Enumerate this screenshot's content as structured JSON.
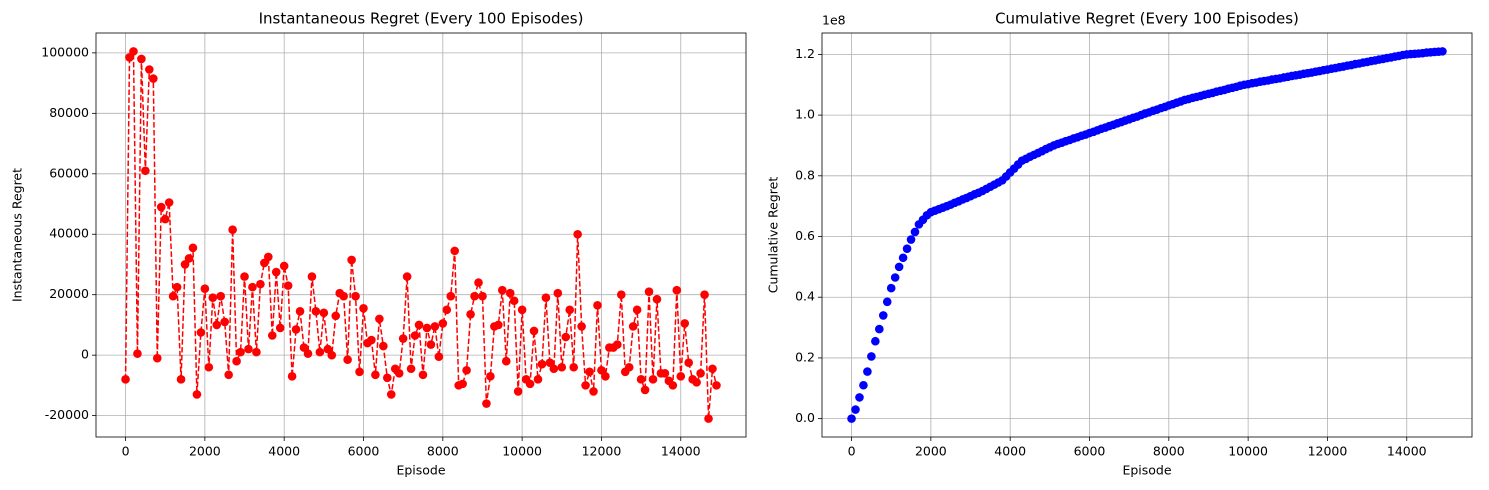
{
  "chart_data": [
    {
      "type": "line",
      "title": "Instantaneous Regret (Every 100 Episodes)",
      "xlabel": "Episode",
      "ylabel": "Instantaneous Regret",
      "x": [
        0,
        100,
        200,
        300,
        400,
        500,
        600,
        700,
        800,
        900,
        1000,
        1100,
        1200,
        1300,
        1400,
        1500,
        1600,
        1700,
        1800,
        1900,
        2000,
        2100,
        2200,
        2300,
        2400,
        2500,
        2600,
        2700,
        2800,
        2900,
        3000,
        3100,
        3200,
        3300,
        3400,
        3500,
        3600,
        3700,
        3800,
        3900,
        4000,
        4100,
        4200,
        4300,
        4400,
        4500,
        4600,
        4700,
        4800,
        4900,
        5000,
        5100,
        5200,
        5300,
        5400,
        5500,
        5600,
        5700,
        5800,
        5900,
        6000,
        6100,
        6200,
        6300,
        6400,
        6500,
        6600,
        6700,
        6800,
        6900,
        7000,
        7100,
        7200,
        7300,
        7400,
        7500,
        7600,
        7700,
        7800,
        7900,
        8000,
        8100,
        8200,
        8300,
        8400,
        8500,
        8600,
        8700,
        8800,
        8900,
        9000,
        9100,
        9200,
        9300,
        9400,
        9500,
        9600,
        9700,
        9800,
        9900,
        10000,
        10100,
        10200,
        10300,
        10400,
        10500,
        10600,
        10700,
        10800,
        10900,
        11000,
        11100,
        11200,
        11300,
        11400,
        11500,
        11600,
        11700,
        11800,
        11900,
        12000,
        12100,
        12200,
        12300,
        12400,
        12500,
        12600,
        12700,
        12800,
        12900,
        13000,
        13100,
        13200,
        13300,
        13400,
        13500,
        13600,
        13700,
        13800,
        13900,
        14000,
        14100,
        14200,
        14300,
        14400,
        14500,
        14600,
        14700,
        14800,
        14900
      ],
      "series": [
        {
          "color": "#ff0000",
          "line_style": "dashed",
          "marker": "circle",
          "values": [
            -8000,
            98500,
            100500,
            500,
            98000,
            61000,
            94500,
            91500,
            -1000,
            49000,
            45000,
            50500,
            19500,
            22500,
            -8000,
            30000,
            32000,
            35500,
            -13000,
            7500,
            22000,
            -4000,
            19000,
            10000,
            19500,
            11000,
            -6500,
            41500,
            -2000,
            1000,
            26000,
            2000,
            22500,
            1000,
            23500,
            30500,
            32500,
            6500,
            27500,
            9000,
            29500,
            23000,
            -7000,
            8500,
            14500,
            2500,
            500,
            26000,
            14500,
            1000,
            14000,
            2000,
            0,
            13000,
            20500,
            19500,
            -1500,
            31500,
            19500,
            -5500,
            15500,
            4000,
            5000,
            -6500,
            12000,
            3000,
            -7500,
            -13000,
            -4500,
            -6000,
            5500,
            26000,
            -4500,
            6500,
            10000,
            -6500,
            9000,
            3500,
            9500,
            -500,
            10500,
            15000,
            19500,
            34500,
            -10000,
            -9500,
            -5000,
            13500,
            19500,
            24000,
            19500,
            -16000,
            -7000,
            9500,
            10000,
            21500,
            -2000,
            20500,
            18000,
            -12000,
            15000,
            -8000,
            -9500,
            8000,
            -8000,
            -3000,
            19000,
            -2500,
            -4500,
            20500,
            -4000,
            6000,
            15000,
            -4000,
            40000,
            9500,
            -10000,
            -5500,
            -12000,
            16500,
            -5000,
            -7000,
            2500,
            2500,
            3500,
            20000,
            -5500,
            -4000,
            9500,
            15000,
            -8000,
            -11500,
            21000,
            -8000,
            18500,
            -6000,
            -6000,
            -8500,
            -10000,
            21500,
            -7000,
            10500,
            -2500,
            -8000,
            -9000,
            -6000,
            20000,
            -21000,
            -4500,
            -10000
          ]
        }
      ],
      "xlim": [
        -745,
        15645
      ],
      "xticks": [
        0,
        2000,
        4000,
        6000,
        8000,
        10000,
        12000,
        14000
      ],
      "ylim": [
        -27075,
        106575
      ],
      "yticks": [
        -20000,
        0,
        20000,
        40000,
        60000,
        80000,
        100000
      ],
      "grid": true
    },
    {
      "type": "line",
      "title": "Cumulative Regret (Every 100 Episodes)",
      "xlabel": "Episode",
      "ylabel": "Cumulative Regret",
      "y_offset_label": "1e8",
      "x": [
        0,
        100,
        200,
        300,
        400,
        500,
        600,
        700,
        800,
        900,
        1000,
        1100,
        1200,
        1300,
        1400,
        1500,
        1600,
        1700,
        1800,
        1900,
        2000,
        2100,
        2200,
        2300,
        2400,
        2500,
        2600,
        2700,
        2800,
        2900,
        3000,
        3100,
        3200,
        3300,
        3400,
        3500,
        3600,
        3700,
        3800,
        3900,
        4000,
        4100,
        4200,
        4300,
        4400,
        4500,
        4600,
        4700,
        4800,
        4900,
        5000,
        5100,
        5200,
        5300,
        5400,
        5500,
        5600,
        5700,
        5800,
        5900,
        6000,
        6100,
        6200,
        6300,
        6400,
        6500,
        6600,
        6700,
        6800,
        6900,
        7000,
        7100,
        7200,
        7300,
        7400,
        7500,
        7600,
        7700,
        7800,
        7900,
        8000,
        8100,
        8200,
        8300,
        8400,
        8500,
        8600,
        8700,
        8800,
        8900,
        9000,
        9100,
        9200,
        9300,
        9400,
        9500,
        9600,
        9700,
        9800,
        9900,
        10000,
        10100,
        10200,
        10300,
        10400,
        10500,
        10600,
        10700,
        10800,
        10900,
        11000,
        11100,
        11200,
        11300,
        11400,
        11500,
        11600,
        11700,
        11800,
        11900,
        12000,
        12100,
        12200,
        12300,
        12400,
        12500,
        12600,
        12700,
        12800,
        12900,
        13000,
        13100,
        13200,
        13300,
        13400,
        13500,
        13600,
        13700,
        13800,
        13900,
        14000,
        14100,
        14200,
        14300,
        14400,
        14500,
        14600,
        14700,
        14800,
        14900
      ],
      "series": [
        {
          "color": "#0000ff",
          "line_style": "none",
          "marker": "circle",
          "values": [
            0,
            0.03,
            0.07,
            0.11,
            0.155,
            0.205,
            0.255,
            0.295,
            0.34,
            0.385,
            0.43,
            0.465,
            0.5,
            0.53,
            0.56,
            0.59,
            0.615,
            0.64,
            0.655,
            0.67,
            0.68,
            0.685,
            0.69,
            0.695,
            0.7,
            0.705,
            0.711,
            0.716,
            0.722,
            0.727,
            0.733,
            0.739,
            0.744,
            0.75,
            0.757,
            0.764,
            0.771,
            0.778,
            0.785,
            0.798,
            0.811,
            0.824,
            0.837,
            0.85,
            0.856,
            0.863,
            0.869,
            0.875,
            0.881,
            0.888,
            0.894,
            0.9,
            0.905,
            0.909,
            0.914,
            0.918,
            0.923,
            0.927,
            0.932,
            0.936,
            0.941,
            0.945,
            0.95,
            0.955,
            0.959,
            0.964,
            0.968,
            0.973,
            0.977,
            0.982,
            0.986,
            0.991,
            0.995,
            1.0,
            1.005,
            1.009,
            1.014,
            1.018,
            1.023,
            1.027,
            1.032,
            1.036,
            1.041,
            1.045,
            1.05,
            1.053,
            1.057,
            1.06,
            1.063,
            1.067,
            1.07,
            1.073,
            1.077,
            1.08,
            1.083,
            1.087,
            1.09,
            1.093,
            1.097,
            1.1,
            1.102,
            1.105,
            1.107,
            1.11,
            1.112,
            1.114,
            1.117,
            1.119,
            1.121,
            1.124,
            1.126,
            1.129,
            1.131,
            1.133,
            1.136,
            1.138,
            1.14,
            1.143,
            1.145,
            1.148,
            1.15,
            1.153,
            1.155,
            1.158,
            1.16,
            1.163,
            1.165,
            1.168,
            1.17,
            1.173,
            1.175,
            1.178,
            1.18,
            1.183,
            1.185,
            1.188,
            1.19,
            1.193,
            1.195,
            1.198,
            1.2,
            1.201,
            1.202,
            1.203,
            1.204,
            1.206,
            1.207,
            1.208,
            1.209,
            1.21
          ]
        }
      ],
      "xlim": [
        -745,
        15645
      ],
      "xticks": [
        0,
        2000,
        4000,
        6000,
        8000,
        10000,
        12000,
        14000
      ],
      "ylim": [
        -0.0605,
        1.2705
      ],
      "yticks": [
        {
          "value": 0,
          "label": "0.0"
        },
        0.2,
        0.4,
        0.6,
        0.8,
        {
          "value": 1,
          "label": "1.0"
        },
        1.2
      ],
      "grid": true
    }
  ]
}
